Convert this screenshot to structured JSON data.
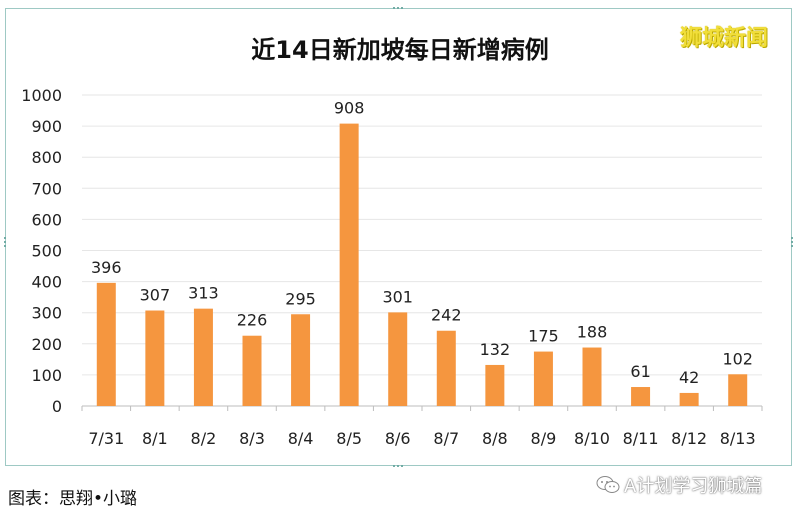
{
  "watermark_top": "狮城新闻",
  "caption": "图表：思翔•小璐",
  "wechat_account": "A计划学习狮城篇",
  "colors": {
    "bar": "#f5963f",
    "frame": "#9ec9c4",
    "grid": "#e6e6e6"
  },
  "chart_data": {
    "type": "bar",
    "title": "近14日新加坡每日新增病例",
    "categories": [
      "7/31",
      "8/1",
      "8/2",
      "8/3",
      "8/4",
      "8/5",
      "8/6",
      "8/7",
      "8/8",
      "8/9",
      "8/10",
      "8/11",
      "8/12",
      "8/13"
    ],
    "values": [
      396,
      307,
      313,
      226,
      295,
      908,
      301,
      242,
      132,
      175,
      188,
      61,
      42,
      102
    ],
    "ylim": [
      0,
      1000
    ],
    "yticks": [
      0,
      100,
      200,
      300,
      400,
      500,
      600,
      700,
      800,
      900,
      1000
    ],
    "grid": true,
    "data_labels": true
  }
}
